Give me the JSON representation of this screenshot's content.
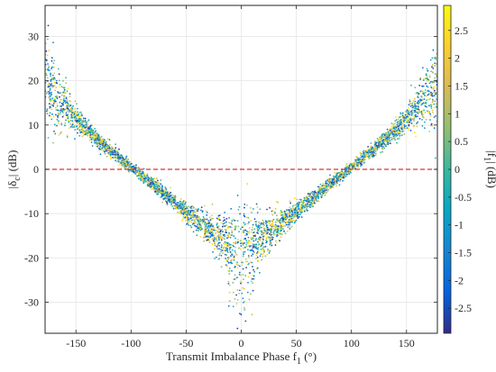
{
  "chart_data": {
    "type": "scatter",
    "xlabel": "Transmit Imbalance Phase f",
    "xlabel_sub": "1",
    "xlabel_unit": " (°)",
    "ylabel": "|δ",
    "ylabel_sub": "c",
    "ylabel_unit": "| (dB)",
    "xlim": [
      -178,
      178
    ],
    "ylim": [
      -37,
      37
    ],
    "xticks": [
      -150,
      -100,
      -50,
      0,
      50,
      100,
      150
    ],
    "yticks": [
      -30,
      -20,
      -10,
      0,
      10,
      20,
      30
    ],
    "grid": true,
    "reference_line": {
      "y": 0,
      "color": "#e03030",
      "style": "dashed"
    },
    "colorbar": {
      "label": "|f",
      "label_sub": "1",
      "label_unit": "| (dB)",
      "range": [
        -2.95,
        2.95
      ],
      "ticks": [
        2.5,
        2,
        1.5,
        1,
        0.5,
        0,
        -0.5,
        -1,
        -1.5,
        -2,
        -2.5
      ],
      "colormap": "parula",
      "stops": [
        "#352a87",
        "#0363e1",
        "#1485d4",
        "#06a7c6",
        "#38b99e",
        "#92bf73",
        "#d9ba56",
        "#fcce2e",
        "#f9fb0e"
      ]
    },
    "series": [
      {
        "trend": {
          "x": [
            -178,
            -170,
            -160,
            -150,
            -140,
            -130,
            -120,
            -110,
            -100,
            -90,
            -80,
            -70,
            -60,
            -50,
            -40,
            -30,
            -20,
            -10,
            0,
            10,
            20,
            30,
            40,
            50,
            60,
            70,
            80,
            90,
            100,
            110,
            120,
            130,
            140,
            150,
            160,
            170,
            178
          ],
          "y": [
            20,
            17,
            14,
            11.5,
            9,
            6.5,
            4.5,
            2.5,
            0.5,
            -1.5,
            -3.5,
            -5.5,
            -7.5,
            -9.5,
            -11.5,
            -13.5,
            -15,
            -16.5,
            -18,
            -16.5,
            -15,
            -13.5,
            -11.5,
            -9.5,
            -7.5,
            -5.5,
            -3.5,
            -1.5,
            0.5,
            2.5,
            4.5,
            6.5,
            9,
            11.5,
            14,
            17,
            20
          ]
        },
        "spread": {
          "x": [
            -178,
            -170,
            -160,
            -150,
            -140,
            -100,
            -60,
            -40,
            -20,
            -10,
            -5,
            0,
            5,
            10,
            20,
            40,
            60,
            100,
            140,
            150,
            160,
            170,
            178
          ],
          "y": [
            5,
            4,
            2.5,
            1.6,
            1,
            0.6,
            0.9,
            1.3,
            2.5,
            3.5,
            5,
            7,
            5,
            3.5,
            2.5,
            1.3,
            0.9,
            0.6,
            1,
            1.6,
            2.5,
            4,
            5
          ]
        }
      }
    ]
  }
}
